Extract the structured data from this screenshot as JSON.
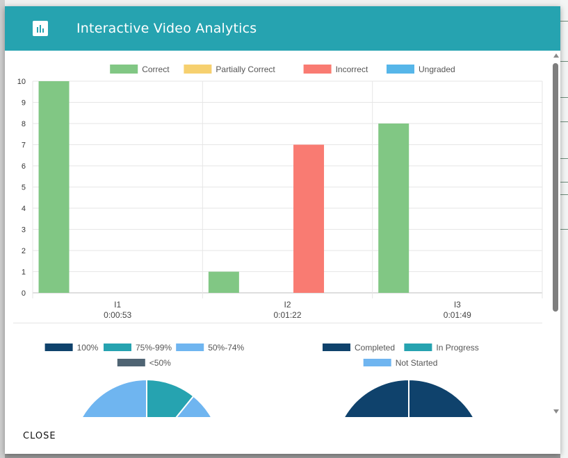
{
  "dialog": {
    "title": "Interactive Video Analytics",
    "close_label": "CLOSE"
  },
  "chart_data": [
    {
      "type": "bar",
      "categories": [
        "I1",
        "I2",
        "I3"
      ],
      "category_sublabels": [
        "0:00:53",
        "0:01:22",
        "0:01:49"
      ],
      "series": [
        {
          "name": "Correct",
          "color": "#81c784",
          "values": [
            10,
            1,
            8
          ]
        },
        {
          "name": "Partially Correct",
          "color": "#f6d06f",
          "values": [
            0,
            0,
            0
          ]
        },
        {
          "name": "Incorrect",
          "color": "#f97b72",
          "values": [
            0,
            7,
            0
          ]
        },
        {
          "name": "Ungraded",
          "color": "#56b6e9",
          "values": [
            0,
            0,
            0
          ]
        }
      ],
      "ylim": [
        0,
        10
      ],
      "yticks": [
        0,
        1,
        2,
        3,
        4,
        5,
        6,
        7,
        8,
        9,
        10
      ],
      "grid": true,
      "legend": "top-center"
    },
    {
      "type": "pie",
      "half": "top, partially visible",
      "legend": "top-center",
      "series": [
        {
          "name": "100%",
          "color": "#0f426c"
        },
        {
          "name": "75%-99%",
          "color": "#26a3b0"
        },
        {
          "name": "50%-74%",
          "color": "#6fb5f0"
        },
        {
          "name": "<50%",
          "color": "#4f6473"
        }
      ],
      "visible_slices": [
        {
          "name": "50%-74%",
          "from_deg": -90,
          "to_deg": 0
        },
        {
          "name": "75%-99%",
          "from_deg": 0,
          "to_deg": 39
        },
        {
          "name": "50%-74%",
          "from_deg": 39,
          "to_deg": 75
        }
      ]
    },
    {
      "type": "pie",
      "half": "top, partially visible",
      "legend": "top-center",
      "series": [
        {
          "name": "Completed",
          "color": "#0f426c"
        },
        {
          "name": "In Progress",
          "color": "#26a3b0"
        },
        {
          "name": "Not Started",
          "color": "#6fb5f0"
        }
      ],
      "visible_slices": [
        {
          "name": "Completed",
          "from_deg": -90,
          "to_deg": 0
        },
        {
          "name": "Completed",
          "from_deg": 0,
          "to_deg": 90
        }
      ]
    }
  ]
}
